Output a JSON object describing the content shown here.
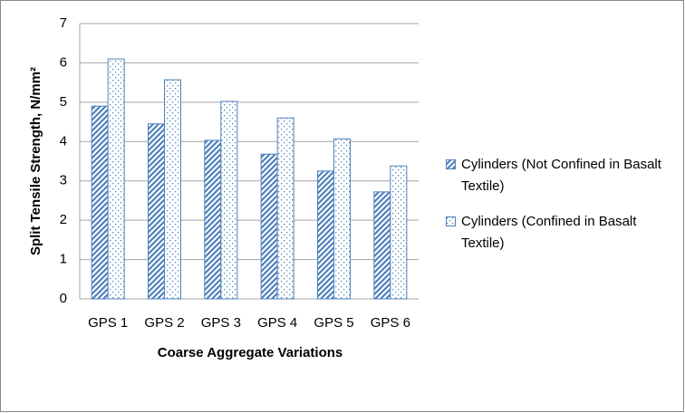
{
  "chart_data": {
    "type": "bar",
    "x_label": "Coarse Aggregate Variations",
    "y_label": "Split Tensile Strength, N/mm²",
    "categories": [
      "GPS 1",
      "GPS 2",
      "GPS 3",
      "GPS 4",
      "GPS 5",
      "GPS 6"
    ],
    "series": [
      {
        "name": "Cylinders (Not Confined in Basalt Textile)",
        "color": "#4f81bd",
        "pattern": "diagonal",
        "values": [
          4.9,
          4.45,
          4.03,
          3.68,
          3.25,
          2.72
        ]
      },
      {
        "name": "Cylinders (Confined in Basalt Textile)",
        "color": "#4f81bd",
        "pattern": "dots",
        "values": [
          6.1,
          5.57,
          5.02,
          4.6,
          4.07,
          3.38
        ]
      }
    ],
    "ylim": [
      0,
      7
    ],
    "yticks": [
      0,
      1,
      2,
      3,
      4,
      5,
      6,
      7
    ],
    "grid": true,
    "legend": "right"
  }
}
